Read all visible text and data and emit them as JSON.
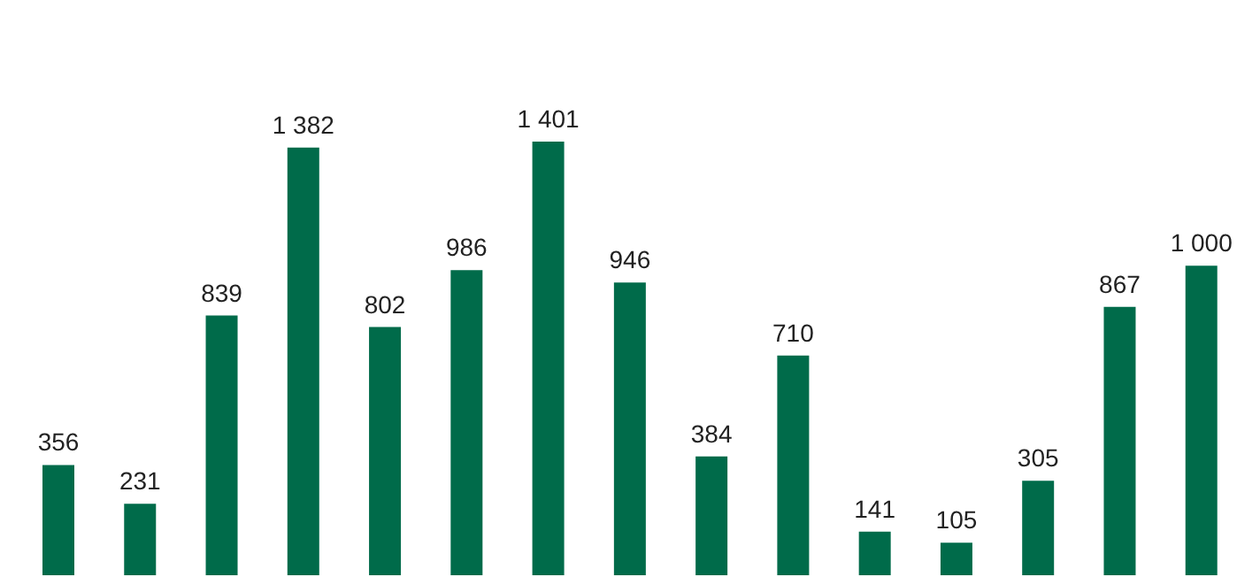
{
  "chart_data": {
    "type": "bar",
    "categories": [
      null,
      null,
      null,
      null,
      null,
      null,
      null,
      null,
      null,
      null,
      null,
      null,
      null,
      null,
      null
    ],
    "values": [
      356,
      231,
      839,
      1382,
      802,
      986,
      1401,
      946,
      384,
      710,
      141,
      105,
      305,
      867,
      1000
    ],
    "value_labels": [
      "356",
      "231",
      "839",
      "1 382",
      "802",
      "986",
      "1 401",
      "946",
      "384",
      "710",
      "141",
      "105",
      "305",
      "867",
      "1 000"
    ],
    "color": "#006b4a"
  }
}
